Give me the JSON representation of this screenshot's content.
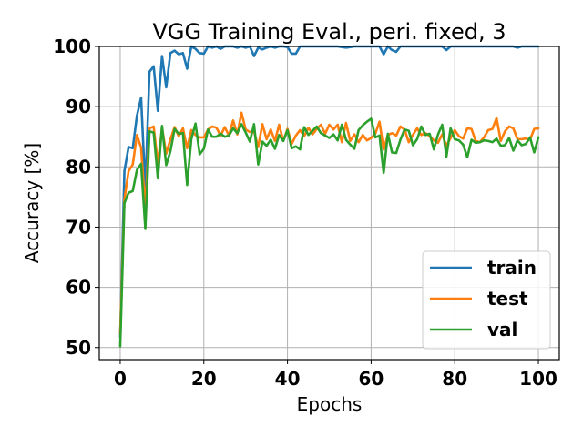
{
  "chart_data": {
    "type": "line",
    "title": "VGG Training Eval., peri. fixed, 3",
    "xlabel": "Epochs",
    "ylabel": "Accuracy [%]",
    "xlim": [
      -5,
      105
    ],
    "ylim": [
      48,
      100
    ],
    "xticks": [
      0,
      20,
      40,
      60,
      80,
      100
    ],
    "yticks": [
      50,
      60,
      70,
      80,
      90,
      100
    ],
    "grid": true,
    "legend_position": "lower-right",
    "series": [
      {
        "name": "train",
        "color": "#1f77b4",
        "values": [
          51.8,
          79.3,
          83.3,
          83.1,
          88.5,
          91.5,
          76.2,
          95.8,
          96.7,
          89.3,
          98.4,
          93.2,
          98.9,
          99.3,
          98.7,
          98.9,
          96.3,
          100.0,
          99.6,
          98.9,
          98.8,
          100.0,
          99.8,
          100.0,
          99.6,
          100.0,
          100.0,
          100.0,
          99.8,
          100.0,
          99.8,
          100.0,
          98.4,
          99.8,
          99.5,
          99.8,
          100.0,
          99.8,
          100.0,
          100.0,
          99.9,
          98.8,
          98.8,
          100.0,
          100.0,
          100.0,
          100.0,
          100.0,
          100.0,
          100.0,
          100.0,
          100.0,
          100.0,
          99.9,
          99.8,
          99.9,
          100.0,
          100.0,
          100.0,
          100.0,
          100.0,
          100.0,
          100.0,
          98.7,
          100.0,
          99.4,
          99.1,
          100.0,
          100.0,
          100.0,
          100.0,
          100.0,
          100.0,
          100.0,
          100.0,
          100.0,
          100.0,
          100.0,
          99.4,
          100.0,
          100.0,
          100.0,
          100.0,
          100.0,
          100.0,
          100.0,
          100.0,
          100.0,
          100.0,
          100.0,
          100.0,
          100.0,
          100.0,
          100.0,
          100.0,
          99.8,
          100.0,
          100.0,
          100.0,
          100.0,
          100.0
        ]
      },
      {
        "name": "test",
        "color": "#ff7f0e",
        "values": [
          52.3,
          74.6,
          79.3,
          80.4,
          85.3,
          83.2,
          72.8,
          86.4,
          86.7,
          80.5,
          86.5,
          82.2,
          84.6,
          86.6,
          85.1,
          86.4,
          83.1,
          86.1,
          85.3,
          84.9,
          84.9,
          86.2,
          86.7,
          86.5,
          85.2,
          86.6,
          85.2,
          87.7,
          85.4,
          89.0,
          86.2,
          85.8,
          85.9,
          83.3,
          87.1,
          84.6,
          86.2,
          84.3,
          87.0,
          84.3,
          86.3,
          83.8,
          85.2,
          86.1,
          85.1,
          86.5,
          85.4,
          86.3,
          87.0,
          85.5,
          87.0,
          86.2,
          87.0,
          84.1,
          87.3,
          84.3,
          85.4,
          84.1,
          85.3,
          84.4,
          84.8,
          85.5,
          87.5,
          82.9,
          85.3,
          85.6,
          85.2,
          86.7,
          86.2,
          84.1,
          85.3,
          86.4,
          85.3,
          85.6,
          85.1,
          84.4,
          84.0,
          85.4,
          83.5,
          84.8,
          86.1,
          85.1,
          84.7,
          86.4,
          86.3,
          84.3,
          84.1,
          84.9,
          86.1,
          86.3,
          88.1,
          84.3,
          85.9,
          86.7,
          86.4,
          84.6,
          84.6,
          84.7,
          84.5,
          86.3,
          86.4
        ]
      },
      {
        "name": "val",
        "color": "#2ca02c",
        "values": [
          50.2,
          74.0,
          75.7,
          76.0,
          79.5,
          80.5,
          69.7,
          85.9,
          85.7,
          78.1,
          86.8,
          80.3,
          82.6,
          86.3,
          85.5,
          85.6,
          77.0,
          84.6,
          87.2,
          82.1,
          83.0,
          86.2,
          85.0,
          85.0,
          85.5,
          85.0,
          85.2,
          86.4,
          85.6,
          87.1,
          85.7,
          84.2,
          87.1,
          80.4,
          84.2,
          83.5,
          84.5,
          83.0,
          85.3,
          84.3,
          86.1,
          83.1,
          83.4,
          82.9,
          86.6,
          85.3,
          86.0,
          86.7,
          85.6,
          85.2,
          84.8,
          85.4,
          84.4,
          87.0,
          84.5,
          83.7,
          83.0,
          86.1,
          86.9,
          87.5,
          88.0,
          84.9,
          85.2,
          79.0,
          85.5,
          82.4,
          82.3,
          84.5,
          86.2,
          86.0,
          83.6,
          84.6,
          86.7,
          85.3,
          85.5,
          82.9,
          85.4,
          87.0,
          81.7,
          86.4,
          84.6,
          84.4,
          83.7,
          81.6,
          84.5,
          84.0,
          84.1,
          84.4,
          84.3,
          84.1,
          84.7,
          83.5,
          83.6,
          84.8,
          82.7,
          84.4,
          83.6,
          83.8,
          84.9,
          82.4,
          84.9
        ]
      }
    ]
  }
}
